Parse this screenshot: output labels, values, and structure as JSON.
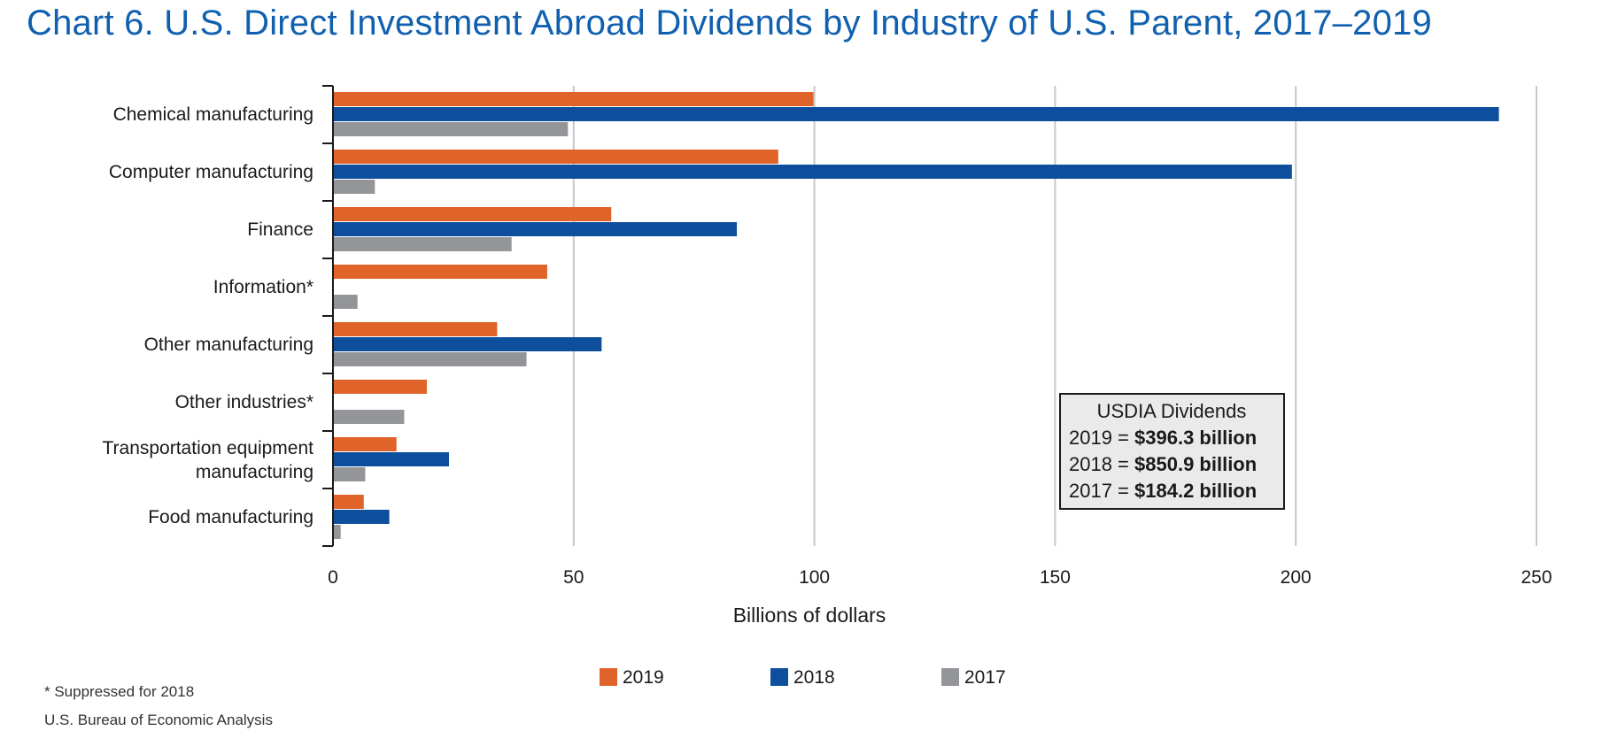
{
  "title": "Chart 6. U.S. Direct Investment Abroad Dividends by Industry of U.S. Parent, 2017–2019",
  "footnote": "* Suppressed for 2018",
  "source": "U.S. Bureau of Economic Analysis",
  "chart_data": {
    "type": "bar",
    "orientation": "horizontal",
    "categories": [
      [
        "Chemical manufacturing"
      ],
      [
        "Computer manufacturing"
      ],
      [
        "Finance"
      ],
      [
        "Information*"
      ],
      [
        "Other manufacturing"
      ],
      [
        "Other industries*"
      ],
      [
        "Transportation equipment",
        "manufacturing"
      ],
      [
        "Food manufacturing"
      ]
    ],
    "series": [
      {
        "name": "2019",
        "color": "#e0632a",
        "values": [
          99.8,
          92.5,
          57.8,
          44.5,
          34.1,
          19.5,
          13.2,
          6.4
        ]
      },
      {
        "name": "2018",
        "color": "#0d4f9c",
        "values": [
          242.2,
          199.2,
          83.9,
          null,
          55.8,
          null,
          24.1,
          11.7
        ]
      },
      {
        "name": "2017",
        "color": "#939598",
        "values": [
          48.8,
          8.7,
          37.1,
          5.1,
          40.2,
          14.8,
          6.7,
          1.6
        ]
      }
    ],
    "xlabel": "Billions of dollars",
    "xlim": [
      0,
      250
    ],
    "xticks": [
      0,
      50,
      100,
      150,
      200,
      250
    ],
    "grid": "vertical",
    "legend_position": "bottom",
    "summary_box": {
      "title": "USDIA Dividends",
      "lines": [
        {
          "label": "2019 = ",
          "value": "$396.3 billion"
        },
        {
          "label": "2018 = ",
          "value": "$850.9 billion"
        },
        {
          "label": "2017 = ",
          "value": "$184.2 billion"
        }
      ]
    }
  }
}
